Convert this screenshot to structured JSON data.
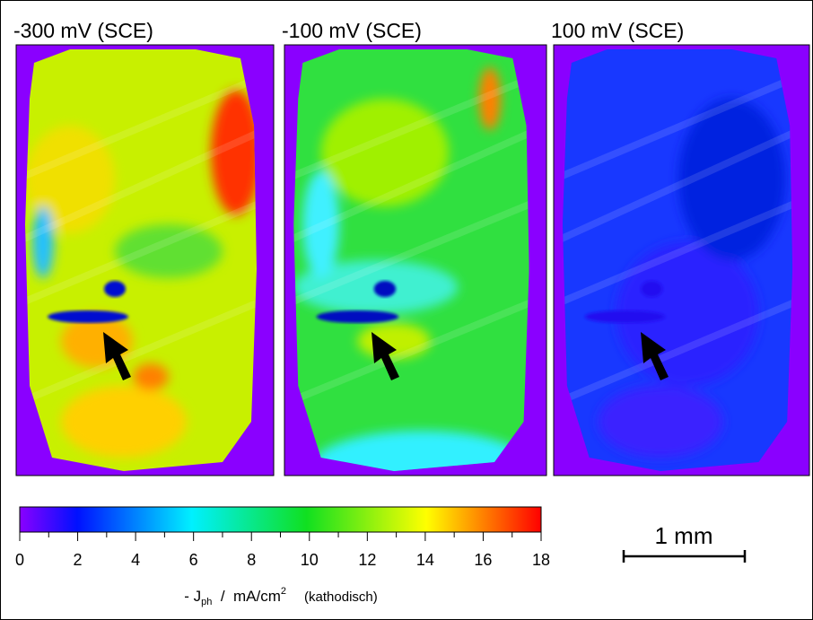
{
  "panels": [
    {
      "title": "-300 mV  (SCE)"
    },
    {
      "title": "-100 mV  (SCE)"
    },
    {
      "title": "100 mV (SCE)"
    }
  ],
  "colorbar": {
    "lim": [
      0,
      18
    ],
    "ticks": [
      0,
      2,
      4,
      6,
      8,
      10,
      12,
      14,
      16,
      18
    ],
    "label": {
      "prefix": "- J",
      "sub": "ph",
      "middle": "  /  mA/cm",
      "sup": "2",
      "suffix": "(kathodisch)"
    }
  },
  "scale_bar": "1 mm"
}
